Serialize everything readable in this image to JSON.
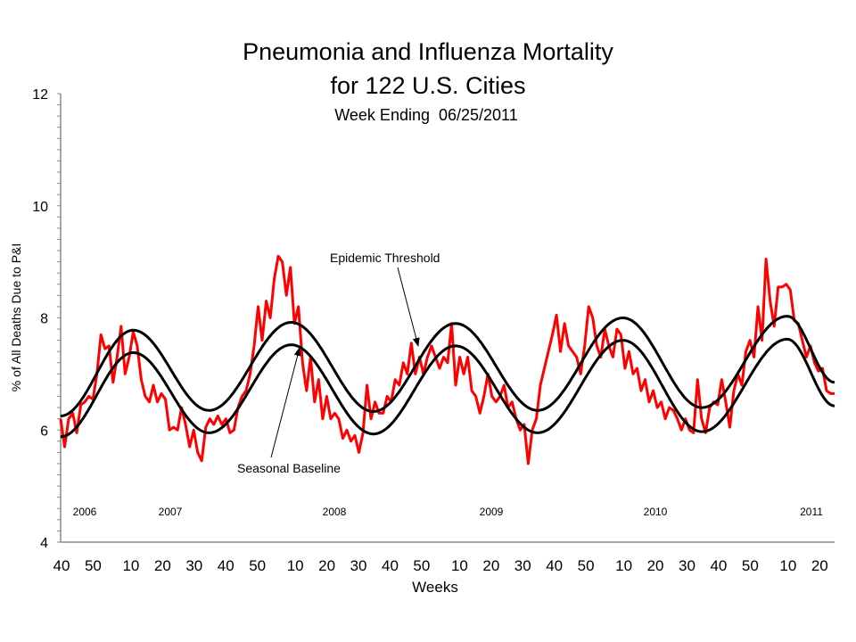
{
  "chart_data": {
    "type": "line",
    "title_line1": "Pneumonia and Influenza Mortality",
    "title_line2": "for 122 U.S. Cities",
    "subtitle": "Week Ending  06/25/2011",
    "ylabel": "% of All Deaths Due to P&I",
    "xlabel": "Weeks",
    "ylim": [
      4,
      12
    ],
    "y_ticks": [
      "12",
      "10",
      "8",
      "6",
      "4"
    ],
    "x_range": {
      "start": {
        "year": 2006,
        "week": 40
      },
      "end": {
        "year": 2011,
        "week": 25
      }
    },
    "x_ticks": [
      {
        "label": "40",
        "year": 2006,
        "week": 40
      },
      {
        "label": "50",
        "year": 2006,
        "week": 50
      },
      {
        "label": "10",
        "year": 2007,
        "week": 10
      },
      {
        "label": "20",
        "year": 2007,
        "week": 20
      },
      {
        "label": "30",
        "year": 2007,
        "week": 30
      },
      {
        "label": "40",
        "year": 2007,
        "week": 40
      },
      {
        "label": "50",
        "year": 2007,
        "week": 50
      },
      {
        "label": "10",
        "year": 2008,
        "week": 10
      },
      {
        "label": "20",
        "year": 2008,
        "week": 20
      },
      {
        "label": "30",
        "year": 2008,
        "week": 30
      },
      {
        "label": "40",
        "year": 2008,
        "week": 40
      },
      {
        "label": "50",
        "year": 2008,
        "week": 50
      },
      {
        "label": "10",
        "year": 2009,
        "week": 10
      },
      {
        "label": "20",
        "year": 2009,
        "week": 20
      },
      {
        "label": "30",
        "year": 2009,
        "week": 30
      },
      {
        "label": "40",
        "year": 2009,
        "week": 40
      },
      {
        "label": "50",
        "year": 2009,
        "week": 50
      },
      {
        "label": "10",
        "year": 2010,
        "week": 10
      },
      {
        "label": "20",
        "year": 2010,
        "week": 20
      },
      {
        "label": "30",
        "year": 2010,
        "week": 30
      },
      {
        "label": "40",
        "year": 2010,
        "week": 40
      },
      {
        "label": "50",
        "year": 2010,
        "week": 50
      },
      {
        "label": "10",
        "year": 2011,
        "week": 10
      },
      {
        "label": "20",
        "year": 2011,
        "week": 20
      }
    ],
    "year_labels": [
      "2006",
      "2007",
      "2008",
      "2009",
      "2010",
      "2011"
    ],
    "grid": false,
    "legend": "none",
    "annotations": [
      {
        "text": "Epidemic Threshold",
        "target": "threshold"
      },
      {
        "text": "Seasonal Baseline",
        "target": "baseline"
      }
    ],
    "colors": {
      "observed": "#ff0000",
      "baseline": "#000000",
      "threshold": "#000000",
      "axis": "#888888"
    },
    "observed": {
      "values": [
        6.2,
        5.7,
        6.2,
        6.3,
        5.95,
        6.45,
        6.5,
        6.6,
        6.55,
        7.0,
        7.7,
        7.45,
        7.5,
        6.85,
        7.3,
        7.85,
        7.0,
        7.3,
        7.75,
        7.5,
        6.9,
        6.6,
        6.5,
        6.8,
        6.5,
        6.65,
        6.55,
        6.0,
        6.05,
        6.0,
        6.4,
        6.1,
        5.7,
        6.0,
        5.6,
        5.45,
        6.05,
        6.2,
        6.1,
        6.25,
        6.1,
        6.2,
        5.95,
        6.0,
        6.4,
        6.6,
        6.7,
        7.0,
        7.5,
        8.2,
        7.6,
        8.3,
        8.0,
        8.7,
        9.1,
        9.0,
        8.4,
        8.9,
        7.9,
        8.2,
        7.2,
        6.7,
        7.3,
        6.5,
        6.9,
        6.2,
        6.6,
        6.2,
        6.3,
        6.2,
        5.85,
        6.0,
        5.8,
        5.9,
        5.6,
        5.95,
        6.8,
        6.2,
        6.5,
        6.3,
        6.3,
        6.6,
        6.5,
        6.9,
        6.8,
        7.2,
        7.0,
        7.55,
        7.0,
        7.3,
        7.0,
        7.3,
        7.5,
        7.3,
        7.1,
        7.3,
        7.2,
        7.9,
        6.8,
        7.3,
        7.0,
        7.3,
        6.7,
        6.6,
        6.3,
        6.6,
        7.0,
        6.6,
        6.5,
        6.6,
        6.8,
        6.4,
        6.5,
        6.2,
        6.0,
        6.1,
        5.4,
        6.0,
        6.2,
        6.8,
        7.1,
        7.4,
        7.7,
        8.05,
        7.4,
        7.9,
        7.5,
        7.4,
        7.3,
        7.0,
        7.5,
        8.2,
        8.0,
        7.5,
        7.3,
        7.8,
        7.5,
        7.3,
        7.8,
        7.7,
        7.1,
        7.4,
        7.0,
        7.1,
        6.7,
        6.9,
        6.5,
        6.7,
        6.4,
        6.5,
        6.2,
        6.4,
        6.35,
        6.2,
        6.0,
        6.2,
        6.0,
        5.95,
        6.9,
        6.2,
        5.95,
        6.4,
        6.5,
        6.45,
        6.9,
        6.5,
        6.05,
        6.7,
        7.0,
        6.8,
        7.4,
        7.6,
        7.3,
        8.2,
        7.6,
        9.05,
        8.3,
        7.85,
        8.55,
        8.55,
        8.6,
        8.5,
        7.95,
        7.9,
        7.6,
        7.3,
        7.5,
        7.2,
        7.05,
        7.1,
        6.7,
        6.65,
        6.65
      ]
    },
    "baseline": {
      "extrema": [
        {
          "year": 2006,
          "week": 40,
          "value": 5.88
        },
        {
          "year": 2007,
          "week": 11,
          "value": 7.38
        },
        {
          "year": 2007,
          "week": 35,
          "value": 5.95
        },
        {
          "year": 2008,
          "week": 9,
          "value": 7.52
        },
        {
          "year": 2008,
          "week": 35,
          "value": 5.93
        },
        {
          "year": 2009,
          "week": 9,
          "value": 7.5
        },
        {
          "year": 2009,
          "week": 35,
          "value": 5.95
        },
        {
          "year": 2010,
          "week": 10,
          "value": 7.6
        },
        {
          "year": 2010,
          "week": 35,
          "value": 5.97
        },
        {
          "year": 2011,
          "week": 10,
          "value": 7.62
        },
        {
          "year": 2011,
          "week": 25,
          "value": 6.43
        }
      ]
    },
    "threshold": {
      "extrema": [
        {
          "year": 2006,
          "week": 40,
          "value": 6.25
        },
        {
          "year": 2007,
          "week": 11,
          "value": 7.78
        },
        {
          "year": 2007,
          "week": 35,
          "value": 6.35
        },
        {
          "year": 2008,
          "week": 9,
          "value": 7.92
        },
        {
          "year": 2008,
          "week": 35,
          "value": 6.33
        },
        {
          "year": 2009,
          "week": 9,
          "value": 7.9
        },
        {
          "year": 2009,
          "week": 35,
          "value": 6.35
        },
        {
          "year": 2010,
          "week": 10,
          "value": 8.0
        },
        {
          "year": 2010,
          "week": 35,
          "value": 6.4
        },
        {
          "year": 2011,
          "week": 10,
          "value": 8.03
        },
        {
          "year": 2011,
          "week": 25,
          "value": 6.85
        }
      ]
    }
  }
}
